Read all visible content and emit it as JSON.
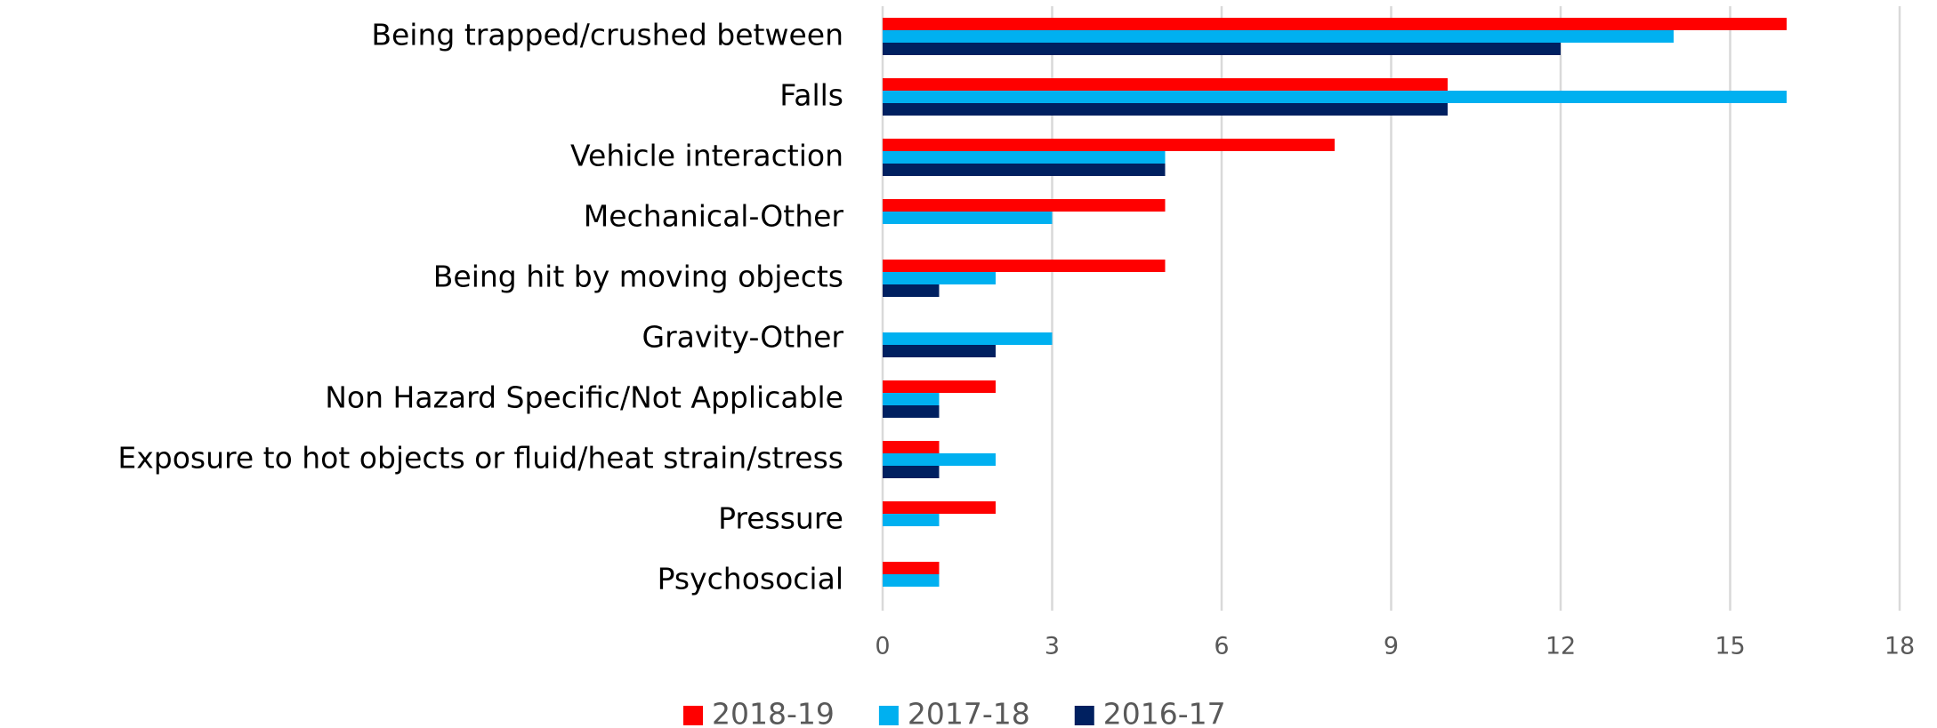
{
  "chart_data": {
    "type": "hbar",
    "categories": [
      "Being trapped/crushed between",
      "Falls",
      "Vehicle interaction",
      "Mechanical-Other",
      "Being hit by moving objects",
      "Gravity-Other",
      "Non Hazard Specific/Not Applicable",
      "Exposure to hot objects or fluid/heat strain/stress",
      "Pressure",
      "Psychosocial"
    ],
    "series": [
      {
        "name": "2018-19",
        "color": "#ff0000",
        "values": [
          16,
          10,
          8,
          5,
          5,
          0,
          2,
          1,
          2,
          1
        ]
      },
      {
        "name": "2017-18",
        "color": "#00b0f0",
        "values": [
          14,
          16,
          5,
          3,
          2,
          3,
          1,
          2,
          1,
          1
        ]
      },
      {
        "name": "2016-17",
        "color": "#002060",
        "values": [
          12,
          10,
          5,
          0,
          1,
          2,
          1,
          1,
          0,
          0
        ]
      }
    ],
    "xlim": [
      0,
      18
    ],
    "xticks": [
      0,
      3,
      6,
      9,
      12,
      15,
      18
    ],
    "grid": true,
    "legend": "bottom"
  }
}
